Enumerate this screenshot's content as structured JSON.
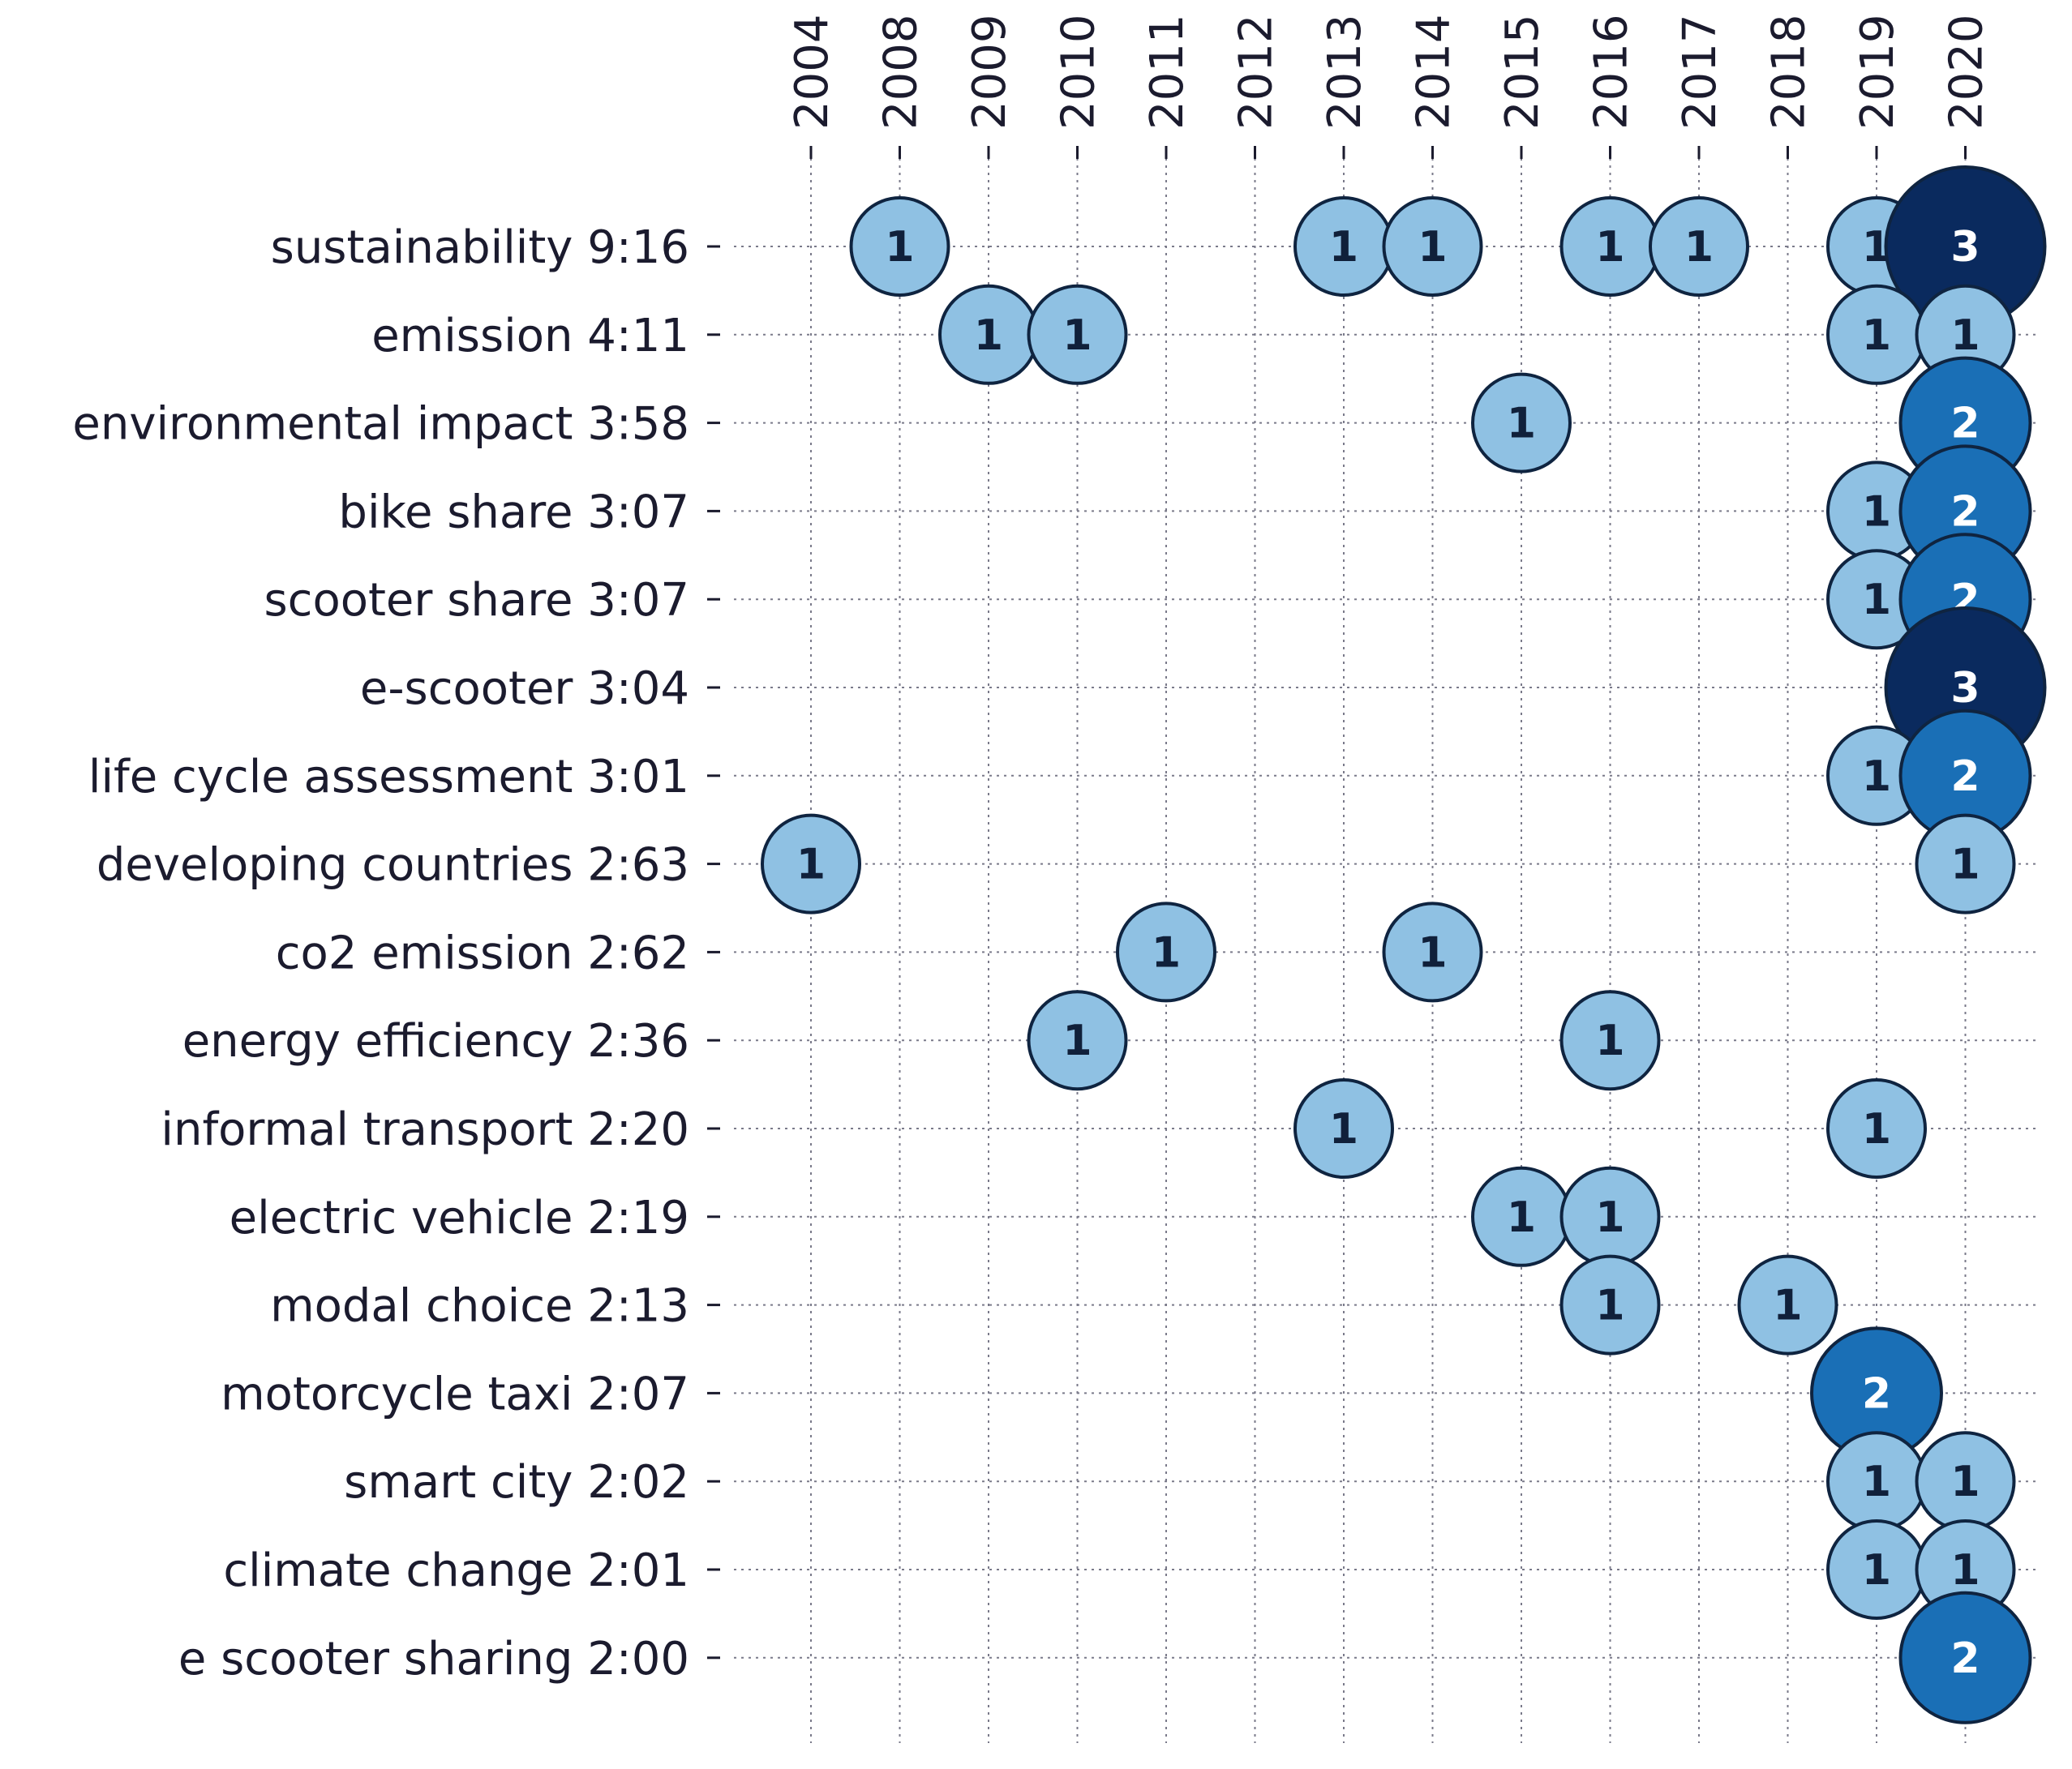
{
  "chart_data": {
    "type": "scatter",
    "subtype": "bubble-timeline",
    "title": "",
    "xlabel": "",
    "ylabel": "",
    "grid": true,
    "years": [
      "2004",
      "2008",
      "2009",
      "2010",
      "2011",
      "2012",
      "2013",
      "2014",
      "2015",
      "2016",
      "2017",
      "2018",
      "2019",
      "2020"
    ],
    "rows": [
      {
        "label": "sustainability 9:16",
        "counts": {
          "2008": 1,
          "2013": 1,
          "2014": 1,
          "2016": 1,
          "2017": 1,
          "2019": 1,
          "2020": 3
        }
      },
      {
        "label": "emission 4:11",
        "counts": {
          "2009": 1,
          "2010": 1,
          "2019": 1,
          "2020": 1
        }
      },
      {
        "label": "environmental impact 3:58",
        "counts": {
          "2015": 1,
          "2020": 2
        }
      },
      {
        "label": "bike share 3:07",
        "counts": {
          "2019": 1,
          "2020": 2
        }
      },
      {
        "label": "scooter share 3:07",
        "counts": {
          "2019": 1,
          "2020": 2
        }
      },
      {
        "label": "e-scooter 3:04",
        "counts": {
          "2020": 3
        }
      },
      {
        "label": "life cycle assessment 3:01",
        "counts": {
          "2019": 1,
          "2020": 2
        }
      },
      {
        "label": "developing countries 2:63",
        "counts": {
          "2004": 1,
          "2020": 1
        }
      },
      {
        "label": "co2 emission 2:62",
        "counts": {
          "2011": 1,
          "2014": 1
        }
      },
      {
        "label": "energy efficiency 2:36",
        "counts": {
          "2010": 1,
          "2016": 1
        }
      },
      {
        "label": "informal transport 2:20",
        "counts": {
          "2013": 1,
          "2019": 1
        }
      },
      {
        "label": "electric vehicle 2:19",
        "counts": {
          "2015": 1,
          "2016": 1
        }
      },
      {
        "label": "modal choice 2:13",
        "counts": {
          "2016": 1,
          "2018": 1
        }
      },
      {
        "label": "motorcycle taxi 2:07",
        "counts": {
          "2019": 2
        }
      },
      {
        "label": "smart city 2:02",
        "counts": {
          "2019": 1,
          "2020": 1
        }
      },
      {
        "label": "climate change 2:01",
        "counts": {
          "2019": 1,
          "2020": 1
        }
      },
      {
        "label": "e scooter sharing 2:00",
        "counts": {
          "2020": 2
        }
      }
    ],
    "colors": {
      "1": "#8fc1e3",
      "2": "#1a6fb6",
      "3": "#0a2a5e",
      "stroke": "#0f2440",
      "text_light": "#ffffff",
      "text_dark": "#10203a"
    }
  }
}
